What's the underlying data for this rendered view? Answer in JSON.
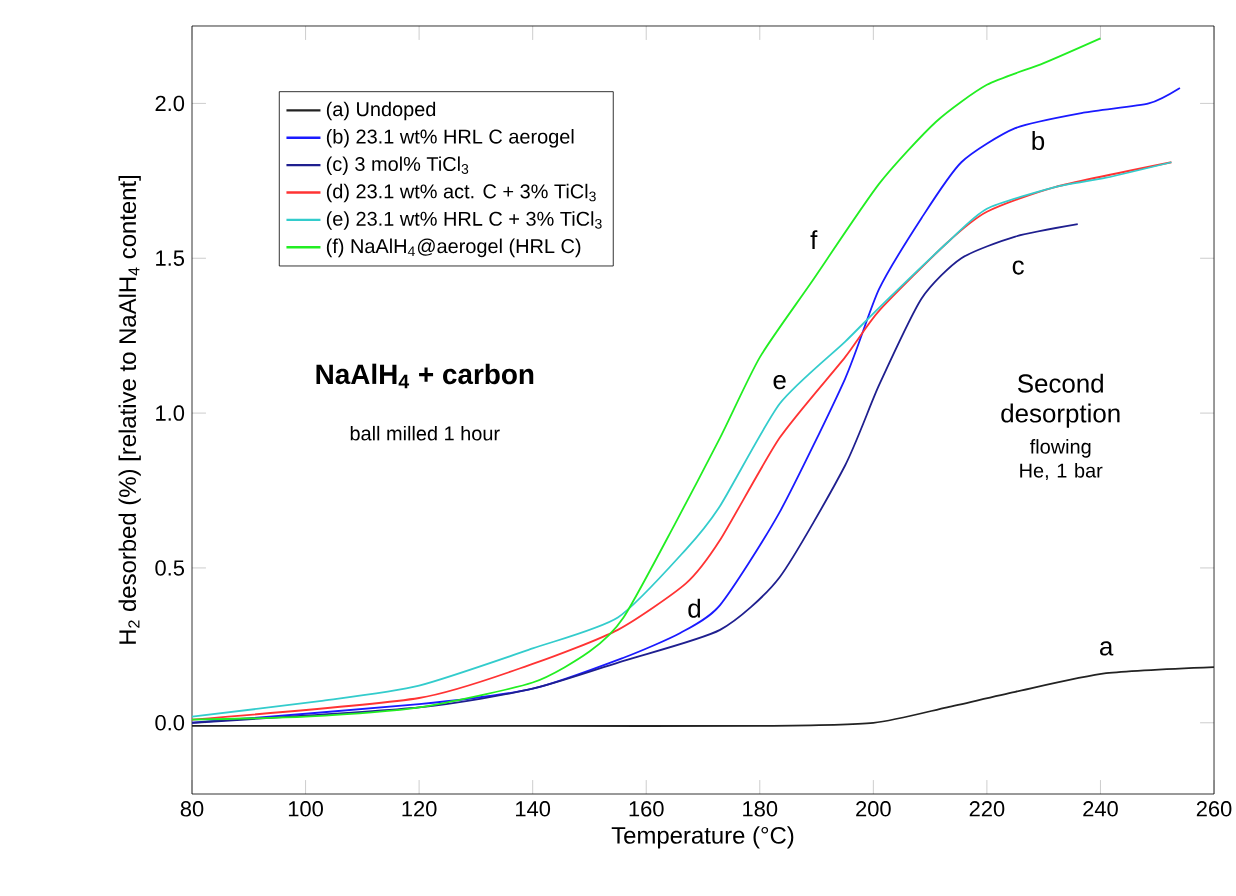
{
  "chart_data": {
    "type": "line",
    "xlabel": "Temperature (°C)",
    "ylabel": "H$_{2}$ desorbed (%) [relative to NaAlH$_{4}$ content]",
    "xlim": [
      80,
      260
    ],
    "ylim": [
      -0.23,
      2.25
    ],
    "xticks": [
      80,
      100,
      120,
      140,
      160,
      180,
      200,
      220,
      240,
      260
    ],
    "yticks": [
      {
        "value": 0,
        "label": "0.0"
      },
      0.5,
      {
        "value": 1,
        "label": "1.0"
      },
      1.5,
      {
        "value": 2,
        "label": "2.0"
      }
    ],
    "legend": "top left",
    "grid": false,
    "marker": "none",
    "line_style": "solid",
    "series": [
      {
        "name": "(a) Undoped",
        "color": "#222222",
        "x": [
          80,
          110,
          140,
          180,
          200,
          213,
          225,
          241,
          260
        ],
        "values": [
          -0.01,
          -0.01,
          -0.01,
          -0.01,
          0.0,
          0.05,
          0.1,
          0.16,
          0.18
        ]
      },
      {
        "name": "(b) 23.1 wt% HRL C aerogel",
        "color": "#1a1aff",
        "x": [
          80,
          120,
          140,
          156,
          166,
          173,
          183.5,
          195,
          201,
          208.5,
          215.5,
          225,
          237,
          248.5,
          254
        ],
        "values": [
          0.0,
          0.06,
          0.11,
          0.21,
          0.29,
          0.38,
          0.68,
          1.11,
          1.4,
          1.63,
          1.81,
          1.92,
          1.97,
          2.0,
          2.05
        ]
      },
      {
        "name": "(c) 3 mol% TiCl$_{3}$",
        "color": "#1f1f8f",
        "x": [
          80,
          120,
          140,
          156,
          173,
          183.5,
          195,
          201,
          208.5,
          215.5,
          225,
          236
        ],
        "values": [
          0.0,
          0.05,
          0.11,
          0.2,
          0.3,
          0.47,
          0.83,
          1.09,
          1.37,
          1.5,
          1.57,
          1.61
        ]
      },
      {
        "name": "(d) 23.1 wt% act. C + 3% TiCl$_{3}$",
        "color": "#ff3333",
        "x": [
          80,
          120,
          140,
          155,
          167,
          173,
          183.5,
          195,
          201,
          213,
          220,
          232,
          252.5
        ],
        "values": [
          0.01,
          0.08,
          0.19,
          0.3,
          0.45,
          0.59,
          0.92,
          1.18,
          1.33,
          1.55,
          1.65,
          1.73,
          1.81
        ]
      },
      {
        "name": "(e) 23.1 wt% HRL C + 3% TiCl$_{3}$",
        "color": "#33cccc",
        "x": [
          80,
          102.5,
          120,
          140,
          155,
          167,
          173,
          183.5,
          195,
          201,
          213,
          220,
          232,
          241,
          252.5
        ],
        "values": [
          0.02,
          0.07,
          0.12,
          0.24,
          0.34,
          0.56,
          0.7,
          1.03,
          1.23,
          1.34,
          1.55,
          1.66,
          1.73,
          1.76,
          1.81
        ]
      },
      {
        "name": "(f) NaAlH$_{4}$@aerogel (HRL C)",
        "color": "#22ee22",
        "x": [
          80,
          100,
          120,
          140,
          150,
          156,
          165,
          173,
          180,
          189,
          201,
          211,
          220,
          230,
          240
        ],
        "values": [
          0.01,
          0.02,
          0.05,
          0.13,
          0.23,
          0.34,
          0.64,
          0.92,
          1.18,
          1.42,
          1.74,
          1.94,
          2.06,
          2.13,
          2.21
        ]
      }
    ],
    "annotations": [
      "NaAlH$_{4}$ + carbon",
      "ball milled 1 hour",
      "Second desorption",
      "flowing He, 1 bar",
      "a",
      "b",
      "c",
      "d",
      "e",
      "f"
    ]
  }
}
